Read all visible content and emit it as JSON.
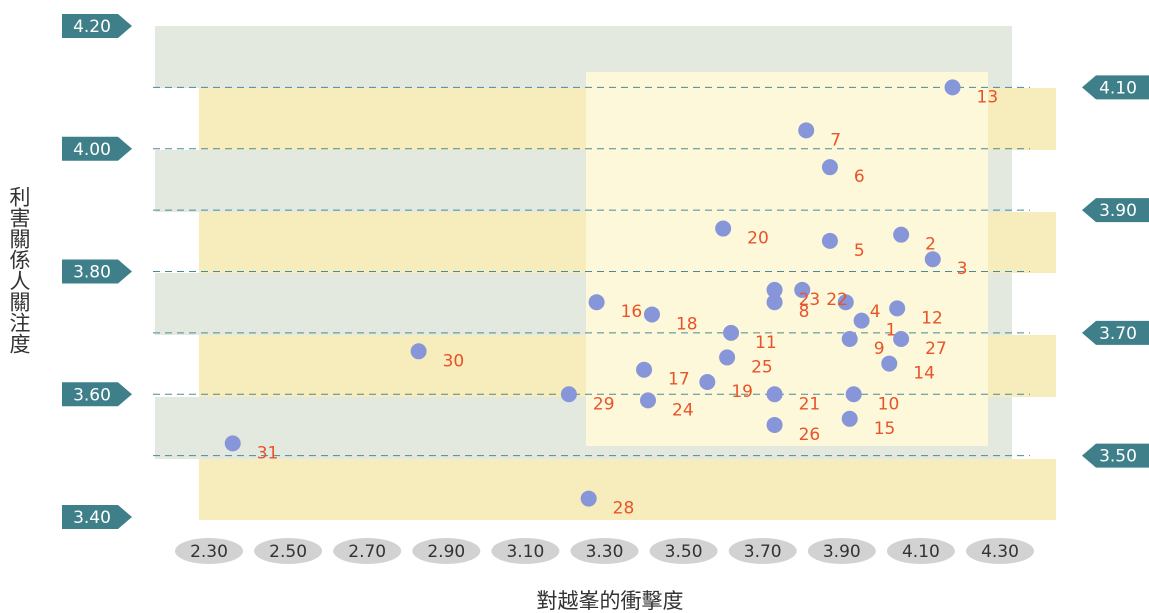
{
  "chart_data": {
    "type": "scatter",
    "x_label": "對越峯的衝擊度",
    "y_label": "利害關係人關注度",
    "xlim": [
      2.3,
      4.3
    ],
    "xticks": [
      {
        "value": 2.3,
        "label": "2.30"
      },
      {
        "value": 2.5,
        "label": "2.50"
      },
      {
        "value": 2.7,
        "label": "2.70"
      },
      {
        "value": 2.9,
        "label": "2.90"
      },
      {
        "value": 3.1,
        "label": "3.10"
      },
      {
        "value": 3.3,
        "label": "3.30"
      },
      {
        "value": 3.5,
        "label": "3.50"
      },
      {
        "value": 3.7,
        "label": "3.70"
      },
      {
        "value": 3.9,
        "label": "3.90"
      },
      {
        "value": 4.1,
        "label": "4.10"
      },
      {
        "value": 4.3,
        "label": "4.30"
      }
    ],
    "ylim": [
      3.4,
      4.2
    ],
    "yticks": [
      {
        "value": 3.4,
        "label": "3.40"
      },
      {
        "value": 3.5,
        "label": "3.50"
      },
      {
        "value": 3.6,
        "label": "3.60"
      },
      {
        "value": 3.7,
        "label": "3.70"
      },
      {
        "value": 3.8,
        "label": "3.80"
      },
      {
        "value": 3.9,
        "label": "3.90"
      },
      {
        "value": 4.0,
        "label": "4.00"
      },
      {
        "value": 4.1,
        "label": "4.10"
      },
      {
        "value": 4.2,
        "label": "4.20"
      }
    ],
    "grid": true,
    "color": "#8796d8",
    "labels": [
      "1",
      "2",
      "3",
      "4",
      "5",
      "6",
      "7",
      "8",
      "9",
      "10",
      "11",
      "12",
      "13",
      "14",
      "15",
      "16",
      "17",
      "18",
      "19",
      "20",
      "21",
      "22",
      "23",
      "24",
      "25",
      "26",
      "27",
      "28",
      "29",
      "30",
      "31"
    ],
    "x": [
      3.95,
      4.05,
      4.13,
      3.91,
      3.87,
      3.87,
      3.81,
      3.73,
      3.92,
      3.93,
      3.62,
      4.04,
      4.18,
      4.02,
      3.92,
      3.28,
      3.4,
      3.42,
      3.56,
      3.6,
      3.73,
      3.8,
      3.73,
      3.41,
      3.61,
      3.73,
      4.05,
      3.26,
      3.21,
      2.83,
      2.36
    ],
    "values": [
      3.72,
      3.86,
      3.82,
      3.75,
      3.85,
      3.97,
      4.03,
      3.75,
      3.69,
      3.6,
      3.7,
      3.74,
      4.1,
      3.65,
      3.56,
      3.75,
      3.64,
      3.73,
      3.62,
      3.87,
      3.6,
      3.77,
      3.77,
      3.59,
      3.66,
      3.55,
      3.69,
      3.43,
      3.6,
      3.67,
      3.52
    ]
  }
}
